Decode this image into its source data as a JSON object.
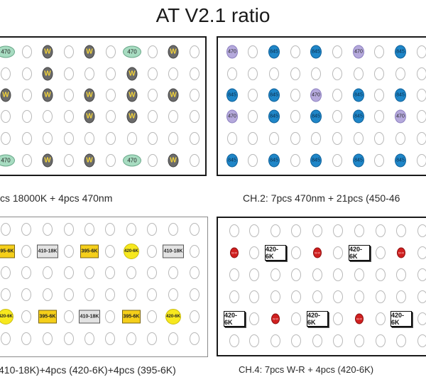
{
  "title": "AT V2.1 ratio",
  "captions": {
    "ch1": "cs 18000K + 4pcs 470nm",
    "ch2": "CH.2: 7pcs 470nm + 21pcs (450-46",
    "ch3": "410-18K)+4pcs (420-6K)+4pcs (395-6K)",
    "ch4": "CH.4: 7pcs W-R + 4pcs (420-6K)"
  },
  "labels": {
    "c470": "470",
    "w": "W",
    "c845": "845",
    "k395": "395-6K",
    "k410": "410-18K",
    "k420": "420-6K",
    "wr": "W-R"
  },
  "colors": {
    "teal_470": "#a7dcc1",
    "grey_w": "#6b6b6b",
    "purple_470": "#b5a9dc",
    "blue_845": "#1f86c8",
    "yellow": "#f5cf1a",
    "red_wr": "#d01f1f"
  }
}
